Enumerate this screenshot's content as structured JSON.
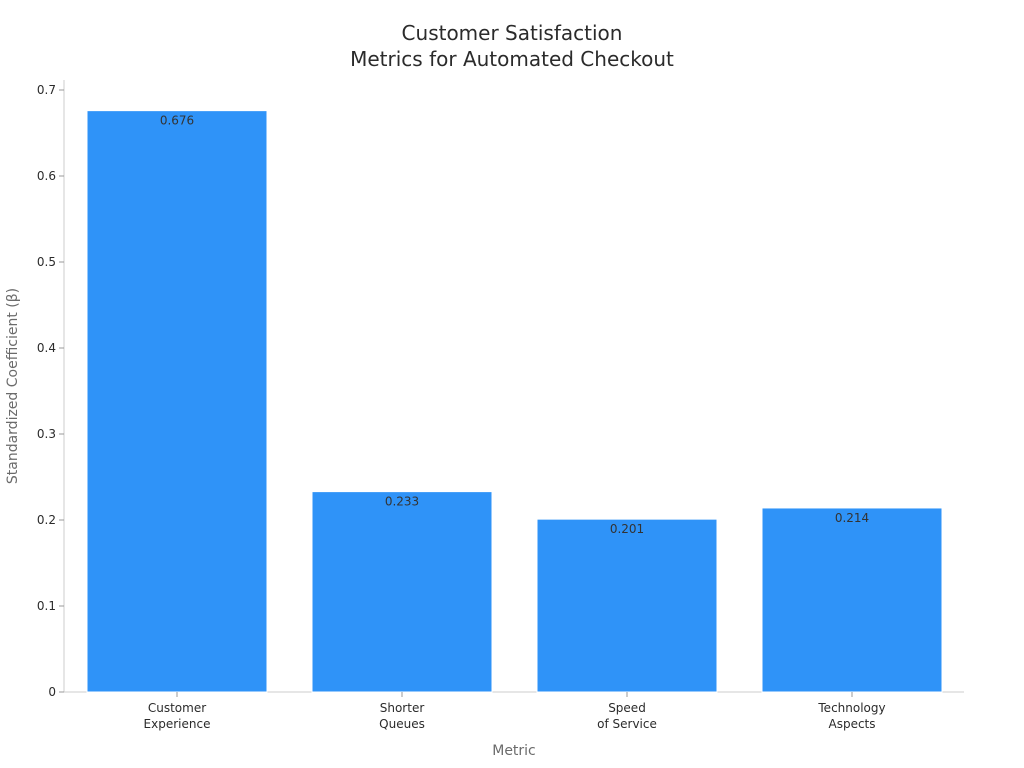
{
  "chart_data": {
    "type": "bar",
    "title": [
      "Customer Satisfaction",
      "Metrics for Automated Checkout"
    ],
    "xlabel": "Metric",
    "ylabel": "Standardized Coefficient (β)",
    "categories": [
      [
        "Customer",
        "Experience"
      ],
      [
        "Shorter",
        "Queues"
      ],
      [
        "Speed",
        "of Service"
      ],
      [
        "Technology",
        "Aspects"
      ]
    ],
    "values": [
      0.676,
      0.233,
      0.201,
      0.214
    ],
    "data_labels": [
      "0.676",
      "0.233",
      "0.201",
      "0.214"
    ],
    "ylim": [
      0,
      0.71
    ],
    "yticks": [
      0,
      0.1,
      0.2,
      0.3,
      0.4,
      0.5,
      0.6,
      0.7
    ],
    "ytick_labels": [
      "0",
      "0.1",
      "0.2",
      "0.3",
      "0.4",
      "0.5",
      "0.6",
      "0.7"
    ],
    "grid": false,
    "bar_color": "#2f93f8"
  }
}
